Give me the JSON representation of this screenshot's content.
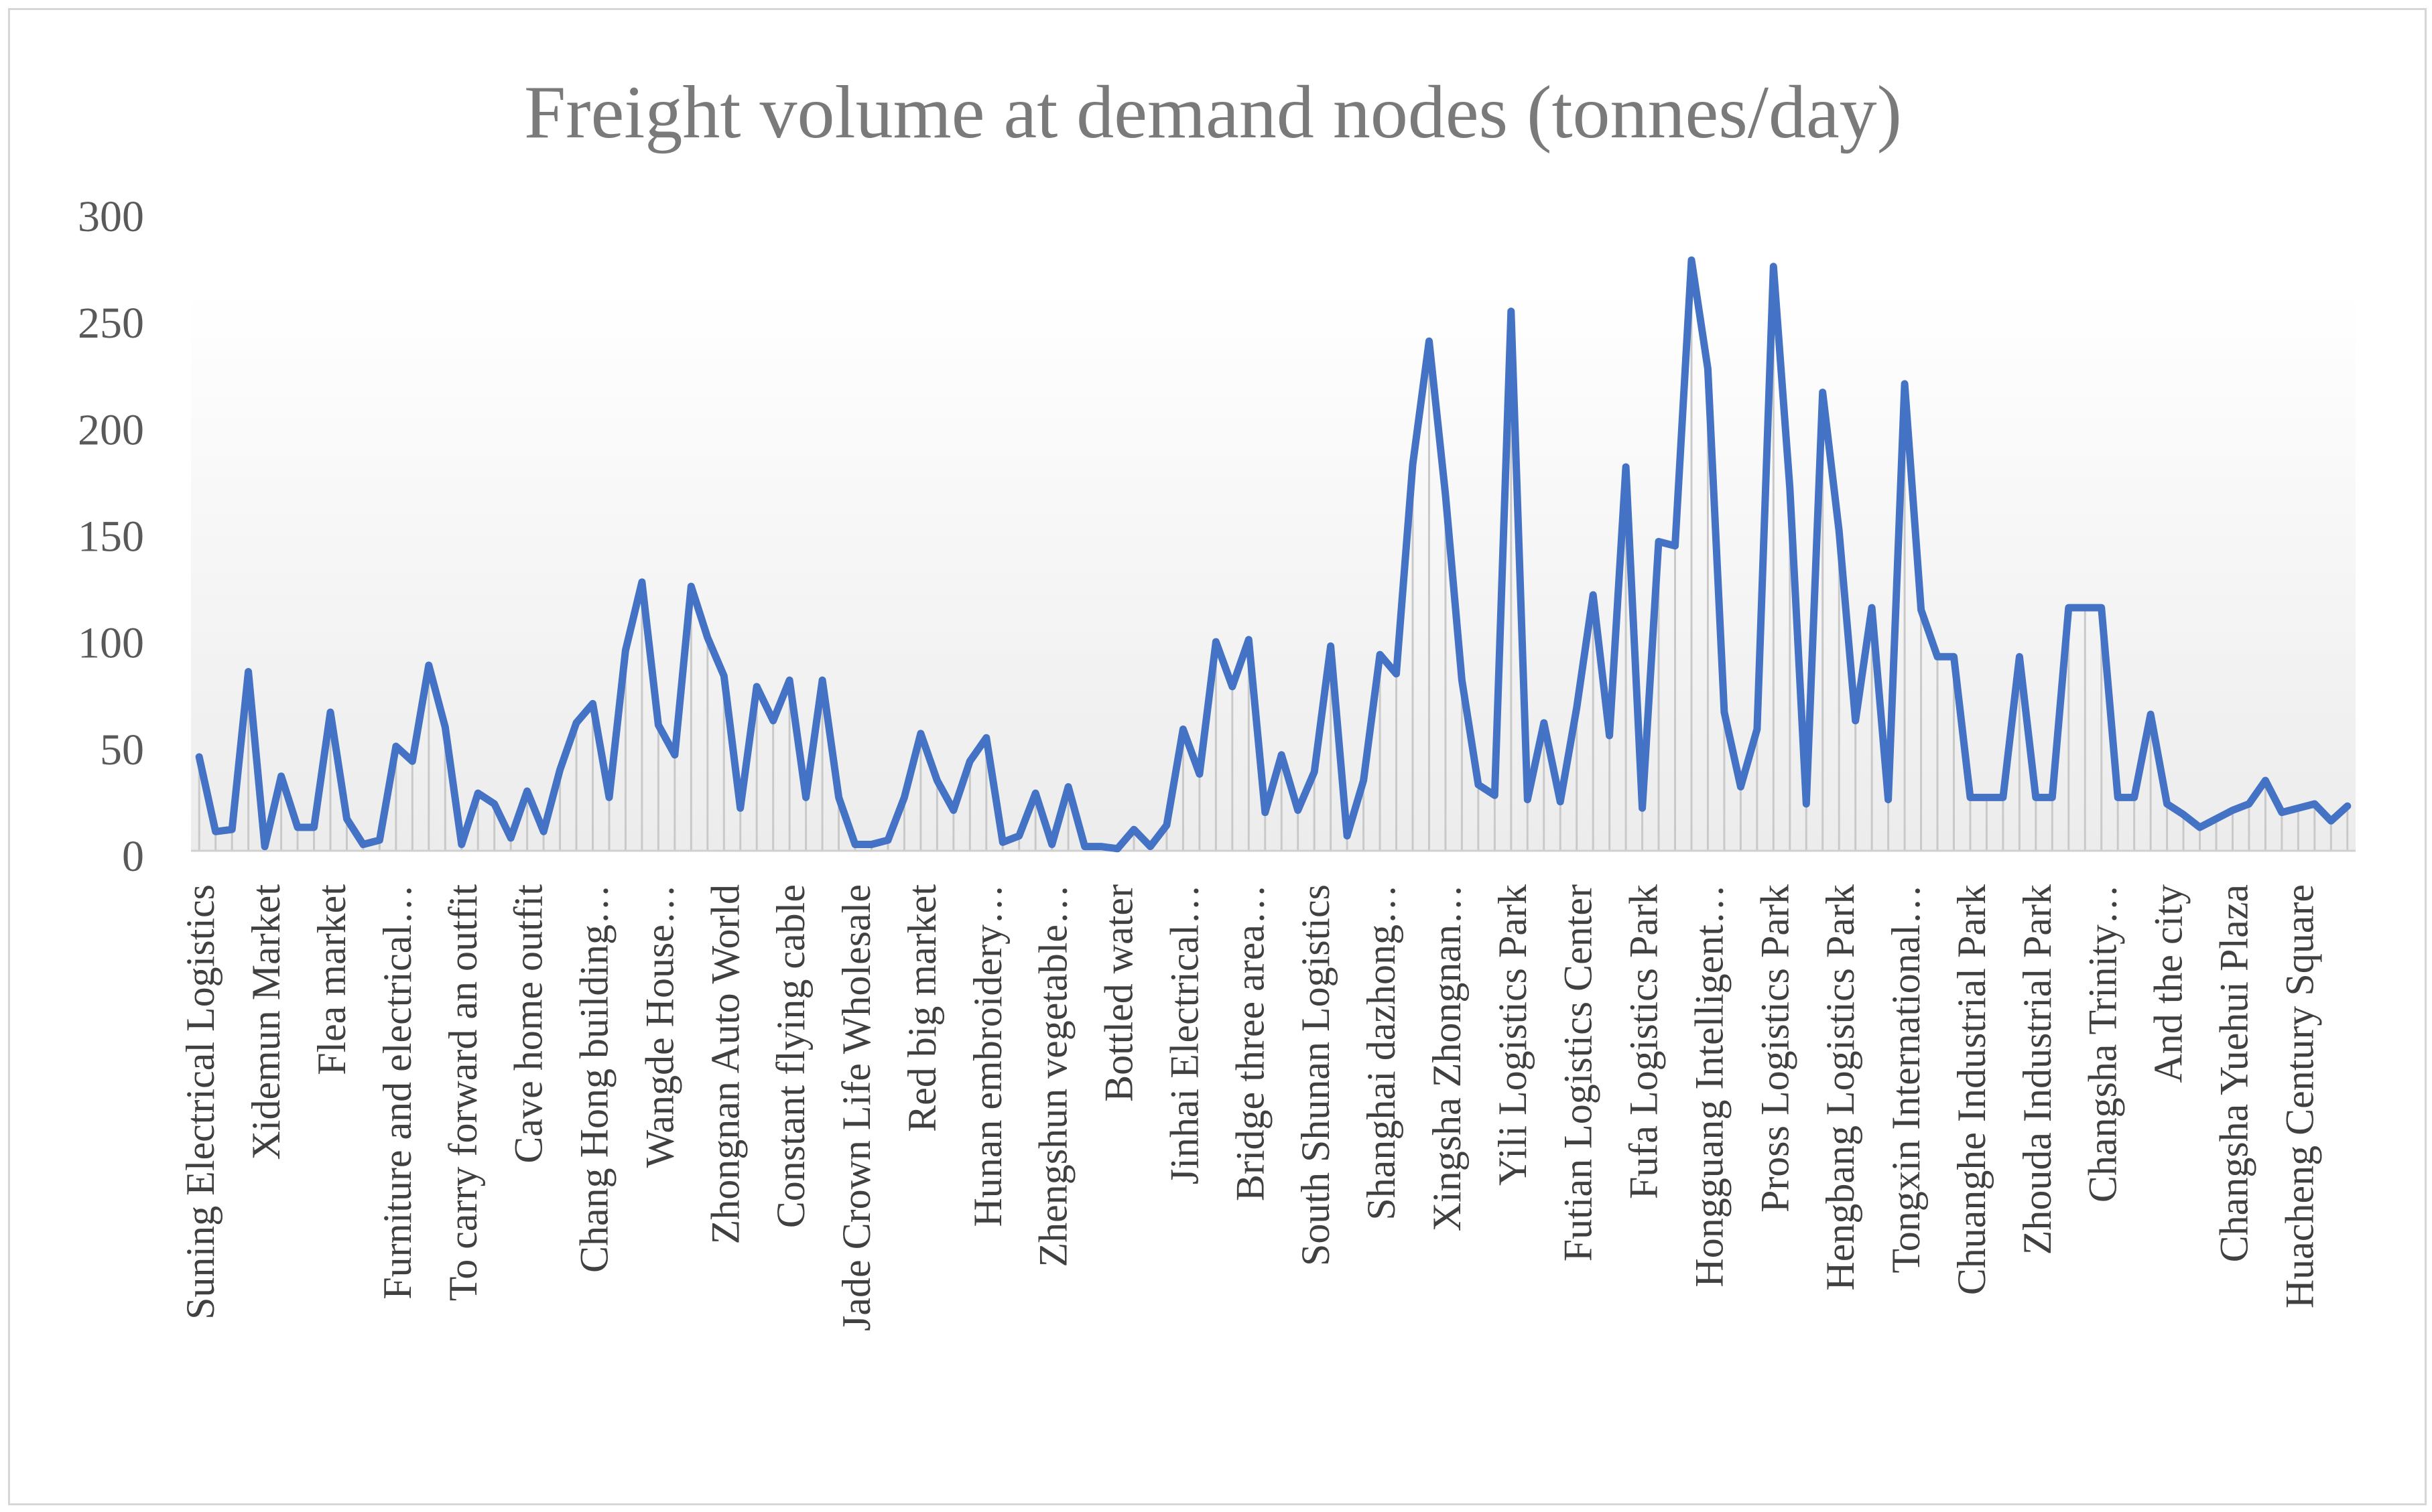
{
  "chart_data": {
    "type": "line",
    "title": "Freight volume at demand nodes (tonnes/day)",
    "xlabel": "",
    "ylabel": "",
    "ylim": [
      0,
      300
    ],
    "yticks": [
      0,
      50,
      100,
      150,
      200,
      250,
      300
    ],
    "grid": false,
    "legend": "none",
    "line_color": "#4472c4",
    "category_labels": [
      "Suning Electrical Logistics",
      "Xidemun Market",
      "Flea market",
      "Furniture and electrical…",
      "To carry forward an outfit",
      "Cave home outfit",
      "Chang Hong building…",
      "Wangde House…",
      "Zhongnan Auto World",
      "Constant flying cable",
      "Jade Crown Life Wholesale",
      "Red big market",
      "Hunan embroidery…",
      "Zhengshun vegetable…",
      "Bottled water",
      "Jinhai Electrical…",
      "Bridge three area…",
      "South Shunan Logistics",
      "Shanghai dazhong…",
      "Xingsha Zhongnan…",
      "Yili Logistics Park",
      "Futian Logistics Center",
      "Fufa Logistics Park",
      "Hongguang Intelligent…",
      "Pross Logistics Park",
      "Hengbang Logistics Park",
      "Tongxin International…",
      "Chuanghe Industrial Park",
      "Zhouda Industrial Park",
      "Changsha Trinity…",
      "And the city",
      "Changsha Yuehui Plaza",
      "Huacheng Century Square"
    ],
    "label_every": 4,
    "values": [
      44,
      9,
      10,
      84,
      2,
      35,
      11,
      11,
      65,
      15,
      3,
      5,
      49,
      42,
      87,
      58,
      3,
      27,
      22,
      6,
      28,
      9,
      38,
      60,
      69,
      25,
      94,
      126,
      59,
      45,
      124,
      100,
      82,
      20,
      77,
      61,
      80,
      25,
      80,
      25,
      3,
      3,
      5,
      25,
      55,
      33,
      19,
      42,
      53,
      4,
      7,
      27,
      3,
      30,
      2,
      2,
      1,
      10,
      2,
      12,
      57,
      36,
      98,
      77,
      99,
      18,
      45,
      19,
      37,
      96,
      7,
      33,
      92,
      83,
      181,
      239,
      167,
      80,
      31,
      26,
      253,
      24,
      60,
      23,
      67,
      120,
      54,
      180,
      20,
      145,
      143,
      277,
      226,
      65,
      30,
      57,
      274,
      170,
      22,
      215,
      150,
      61,
      114,
      24,
      219,
      113,
      91,
      91,
      25,
      25,
      25,
      91,
      25,
      25,
      114,
      114,
      114,
      25,
      25,
      64,
      22,
      17,
      11,
      15,
      19,
      22,
      33,
      18,
      20,
      22,
      14,
      21
    ]
  }
}
